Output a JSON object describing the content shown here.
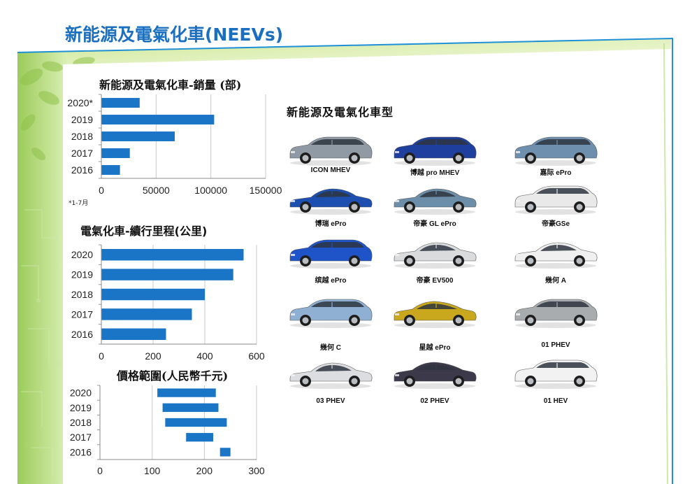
{
  "page": {
    "title": "新能源及電氣化車(NEEVs)"
  },
  "chart_data": [
    {
      "type": "bar",
      "orientation": "horizontal",
      "title": "新能源及電氣化車-銷量 (部)",
      "categories": [
        "2020*",
        "2019",
        "2018",
        "2017",
        "2016"
      ],
      "values": [
        35000,
        103000,
        67000,
        26000,
        17000
      ],
      "xlim": [
        0,
        150000
      ],
      "xticks": [
        "0",
        "50000",
        "100000",
        "150000"
      ],
      "note": "*1-7月",
      "grid": "vertical",
      "color": "#1b75c6"
    },
    {
      "type": "bar",
      "orientation": "horizontal",
      "title": "電氣化車-續行里程(公里)",
      "categories": [
        "2020",
        "2019",
        "2018",
        "2017",
        "2016"
      ],
      "values": [
        550,
        510,
        400,
        350,
        250
      ],
      "xlim": [
        0,
        600
      ],
      "xticks": [
        "0",
        "200",
        "400",
        "600"
      ],
      "grid": "vertical",
      "color": "#1b75c6"
    },
    {
      "type": "bar",
      "orientation": "horizontal",
      "subtype": "range",
      "title": "價格範圍(人民幣千元)",
      "categories": [
        "2020",
        "2019",
        "2018",
        "2017",
        "2016"
      ],
      "ranges": [
        [
          110,
          222
        ],
        [
          120,
          227
        ],
        [
          125,
          243
        ],
        [
          165,
          217
        ],
        [
          230,
          250
        ]
      ],
      "xlim": [
        0,
        300
      ],
      "xticks": [
        "0",
        "100",
        "200",
        "300"
      ],
      "grid": "vertical",
      "color": "#1b75c6"
    }
  ],
  "models": {
    "title": "新能源及電氣化車型",
    "cars": [
      {
        "name": "ICON MHEV",
        "body": "#8f9aa4",
        "shape": "suv"
      },
      {
        "name": "博越 pro MHEV",
        "body": "#1f3f9e",
        "shape": "suv"
      },
      {
        "name": "嘉际 ePro",
        "body": "#6f8fae",
        "shape": "mpv"
      },
      {
        "name": "博瑞 ePro",
        "body": "#1d4fb0",
        "shape": "sedan"
      },
      {
        "name": "帝豪 GL ePro",
        "body": "#6d8ea8",
        "shape": "sedan"
      },
      {
        "name": "帝豪GSe",
        "body": "#e9e9e9",
        "shape": "suv"
      },
      {
        "name": "缤越 ePro",
        "body": "#1f53c8",
        "shape": "suv"
      },
      {
        "name": "帝豪 EV500",
        "body": "#d9dbdd",
        "shape": "sedan"
      },
      {
        "name": "幾何 A",
        "body": "#f0f0f0",
        "shape": "sedan"
      },
      {
        "name": "幾何 C",
        "body": "#8fb0d2",
        "shape": "suv"
      },
      {
        "name": "星越 ePro",
        "body": "#c9a81d",
        "shape": "coupe"
      },
      {
        "name": "01 PHEV",
        "body": "#a8acae",
        "shape": "suv"
      },
      {
        "name": "03 PHEV",
        "body": "#dcdde0",
        "shape": "sedan"
      },
      {
        "name": "02 PHEV",
        "body": "#3c3a4a",
        "shape": "coupe"
      },
      {
        "name": "01 HEV",
        "body": "#f2f2f2",
        "shape": "suv"
      }
    ]
  }
}
